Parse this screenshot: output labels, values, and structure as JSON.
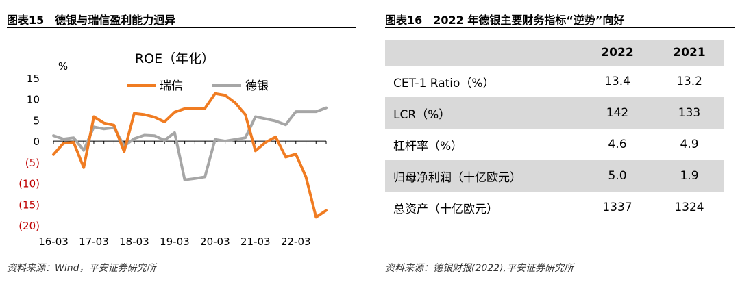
{
  "left_figure": {
    "title": "图表15　德银与瑞信盈利能力迥异",
    "source": "资料来源：Wind，平安证券研究所",
    "chart_data": {
      "type": "line",
      "title": "ROE（年化）",
      "ylabel": "%",
      "ylim": [
        -20,
        15
      ],
      "y_ticks": [
        "15",
        "10",
        "5",
        "0",
        "(5)",
        "(10)",
        "(15)",
        "(20)"
      ],
      "x_ticks": [
        "16-03",
        "17-03",
        "18-03",
        "19-03",
        "20-03",
        "21-03",
        "22-03"
      ],
      "legend_position": "top",
      "grid": false,
      "series": [
        {
          "name": "瑞信",
          "color": "#f07c22",
          "values": [
            -3.2,
            -0.5,
            -0.3,
            -6.3,
            5.8,
            4.3,
            3.8,
            -2.5,
            6.6,
            6.3,
            5.7,
            4.6,
            6.9,
            7.7,
            7.7,
            7.8,
            11.3,
            10.9,
            9.1,
            6.3,
            -2.3,
            -0.3,
            1.0,
            -3.8,
            -3.1,
            -8.5,
            -18.1,
            -16.5
          ]
        },
        {
          "name": "德银",
          "color": "#a6a6a6",
          "values": [
            1.3,
            0.5,
            0.8,
            -2.2,
            3.4,
            2.9,
            3.2,
            -1.2,
            0.6,
            1.4,
            1.3,
            0.2,
            2.0,
            -9.2,
            -8.9,
            -8.5,
            0.4,
            0.0,
            0.4,
            0.8,
            5.8,
            5.3,
            4.8,
            3.9,
            7.0,
            7.0,
            7.0,
            7.9
          ]
        }
      ]
    }
  },
  "right_figure": {
    "title": "图表16　2022 年德银主要财务指标“逆势”向好",
    "source": "资料来源：德银财报(2022),平安证券研究所",
    "table": {
      "headers": [
        "",
        "2022",
        "2021"
      ],
      "rows": [
        [
          "CET-1 Ratio（%）",
          "13.4",
          "13.2"
        ],
        [
          "LCR（%）",
          "142",
          "133"
        ],
        [
          "杠杆率（%）",
          "4.6",
          "4.9"
        ],
        [
          "归母净利润（十亿欧元）",
          "5.0",
          "1.9"
        ],
        [
          "总资产（十亿欧元）",
          "1337",
          "1324"
        ]
      ]
    }
  }
}
